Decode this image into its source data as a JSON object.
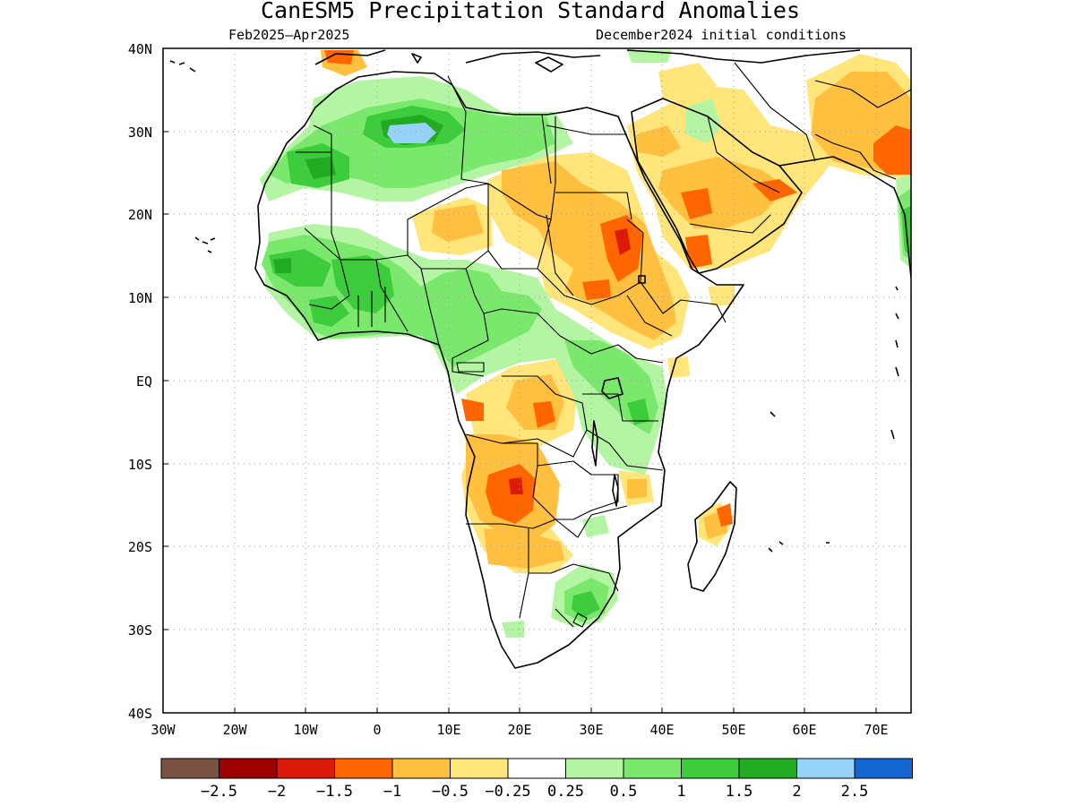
{
  "title": "CanESM5 Precipitation Standard Anomalies",
  "period": "Feb2025–Apr2025",
  "init": "December2024 initial conditions",
  "lon_ticks": [
    "30W",
    "20W",
    "10W",
    "0",
    "10E",
    "20E",
    "30E",
    "40E",
    "50E",
    "60E",
    "70E"
  ],
  "lat_ticks": [
    "40N",
    "30N",
    "20N",
    "10N",
    "EQ",
    "10S",
    "20S",
    "30S",
    "40S"
  ],
  "colorbar": {
    "colors": [
      "#7b5346",
      "#9e0000",
      "#dc1a0a",
      "#ff6600",
      "#ffbf3f",
      "#ffe57a",
      "#ffffff",
      "#b4f5a3",
      "#7ae86c",
      "#3ccc3c",
      "#22aa22",
      "#96d2fa",
      "#1464d2"
    ],
    "labels": [
      "−2.5",
      "−2",
      "−1.5",
      "−1",
      "−0.5",
      "−0.25",
      "0.25",
      "0.5",
      "1",
      "1.5",
      "2",
      "2.5"
    ]
  }
}
